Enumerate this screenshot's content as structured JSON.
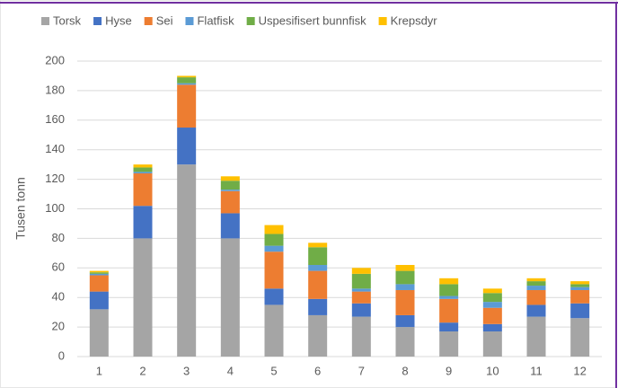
{
  "chart_data": {
    "type": "stacked_bar",
    "y_label": "Tusen tonn",
    "categories": [
      "1",
      "2",
      "3",
      "4",
      "5",
      "6",
      "7",
      "8",
      "9",
      "10",
      "11",
      "12"
    ],
    "series": [
      {
        "name": "Torsk",
        "color": "#a5a5a5",
        "values": [
          32,
          80,
          130,
          80,
          35,
          28,
          27,
          20,
          17,
          17,
          27,
          26
        ]
      },
      {
        "name": "Hyse",
        "color": "#4472c4",
        "values": [
          12,
          22,
          25,
          17,
          11,
          11,
          9,
          8,
          6,
          5,
          8,
          10
        ]
      },
      {
        "name": "Sei",
        "color": "#ed7d31",
        "values": [
          11,
          22,
          29,
          15,
          25,
          19,
          8,
          17,
          16,
          11,
          10,
          9
        ]
      },
      {
        "name": "Flatfisk",
        "color": "#5b9bd5",
        "values": [
          1,
          1,
          1,
          1,
          4,
          4,
          2,
          4,
          2,
          4,
          3,
          2
        ]
      },
      {
        "name": "Uspesifisert bunnfisk",
        "color": "#70ad47",
        "values": [
          1,
          3,
          4,
          6,
          8,
          12,
          10,
          9,
          8,
          6,
          3,
          2
        ]
      },
      {
        "name": "Krepsdyr",
        "color": "#ffc000",
        "values": [
          1,
          2,
          1,
          3,
          6,
          3,
          4,
          4,
          4,
          3,
          2,
          2
        ]
      }
    ],
    "ylim": [
      0,
      200
    ],
    "yticks": [
      0,
      20,
      40,
      60,
      80,
      100,
      120,
      140,
      160,
      180,
      200
    ],
    "grid": true,
    "legend": "top"
  }
}
